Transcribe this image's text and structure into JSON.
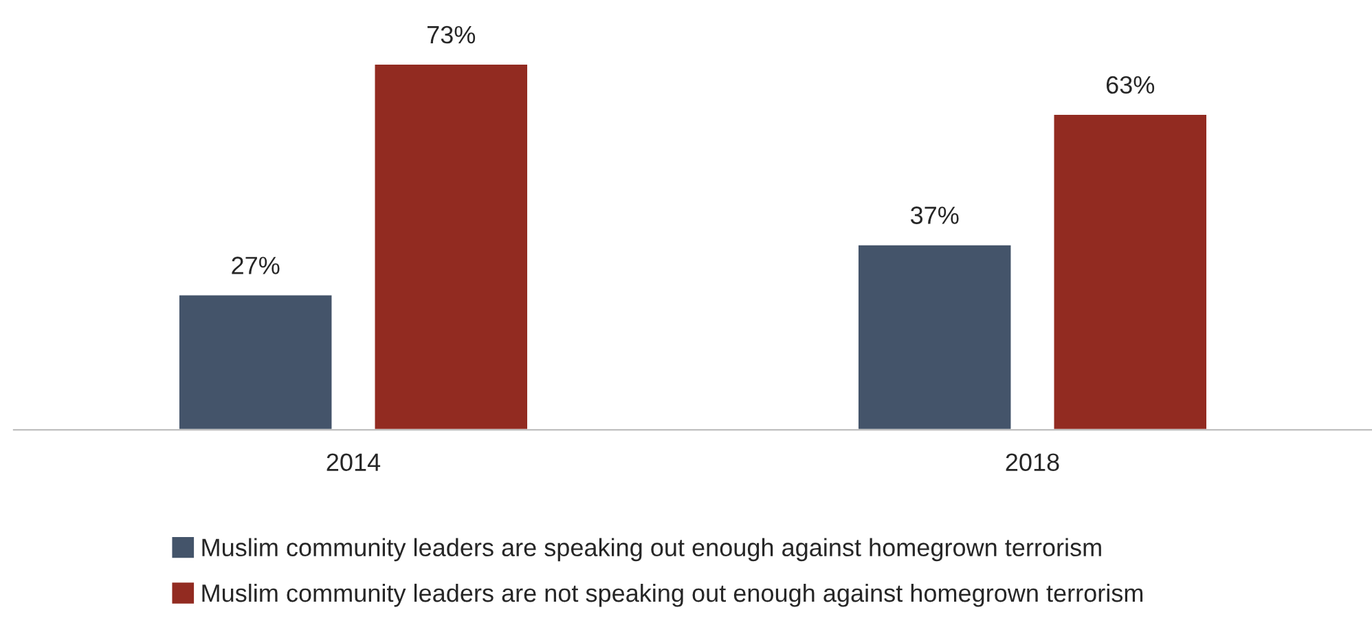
{
  "chart_data": {
    "type": "bar",
    "categories": [
      "2014",
      "2018"
    ],
    "series": [
      {
        "name": "Muslim community leaders are speaking out enough against homegrown terrorism",
        "color": "#44546a",
        "values": [
          27,
          37
        ],
        "value_labels": [
          "27%",
          "37%"
        ]
      },
      {
        "name": "Muslim community leaders are not speaking out enough against homegrown terrorism",
        "color": "#922b21",
        "values": [
          73,
          63
        ],
        "value_labels": [
          "73%",
          "63%"
        ]
      }
    ],
    "legend": "bottom",
    "grid": false
  }
}
